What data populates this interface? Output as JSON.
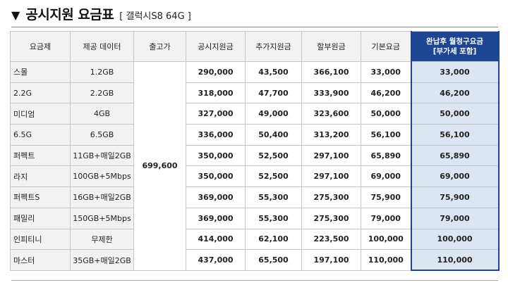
{
  "header": {
    "arrow": "▼",
    "title": "공시지원 요금표",
    "subtitle": "[ 갤럭시S8 64G ]"
  },
  "table": {
    "columns": [
      "요금제",
      "제공 데이터",
      "출고가",
      "공시지원금",
      "추가지원금",
      "할부원금",
      "기본요금"
    ],
    "monthly_header_line1": "완납후 월청구요금",
    "monthly_header_line2": "[부가세 포함]",
    "release_price": "699,600",
    "rows": [
      {
        "plan": "스몰",
        "data": "1.2GB",
        "subsidy": "290,000",
        "extra": "43,500",
        "installment": "366,100",
        "basic": "33,000",
        "monthly": "33,000"
      },
      {
        "plan": "2.2G",
        "data": "2.2GB",
        "subsidy": "318,000",
        "extra": "47,700",
        "installment": "333,900",
        "basic": "46,200",
        "monthly": "46,200"
      },
      {
        "plan": "미디엄",
        "data": "4GB",
        "subsidy": "327,000",
        "extra": "49,000",
        "installment": "323,600",
        "basic": "50,000",
        "monthly": "50,000"
      },
      {
        "plan": "6.5G",
        "data": "6.5GB",
        "subsidy": "336,000",
        "extra": "50,400",
        "installment": "313,200",
        "basic": "56,100",
        "monthly": "56,100"
      },
      {
        "plan": "퍼펙트",
        "data": "11GB+매일2GB",
        "subsidy": "350,000",
        "extra": "52,500",
        "installment": "297,100",
        "basic": "65,890",
        "monthly": "65,890"
      },
      {
        "plan": "라지",
        "data": "100GB+5Mbps",
        "subsidy": "350,000",
        "extra": "52,500",
        "installment": "297,100",
        "basic": "69,000",
        "monthly": "69,000"
      },
      {
        "plan": "퍼펙트S",
        "data": "16GB+매일2GB",
        "subsidy": "369,000",
        "extra": "55,300",
        "installment": "275,300",
        "basic": "75,900",
        "monthly": "75,900"
      },
      {
        "plan": "패밀리",
        "data": "150GB+5Mbps",
        "subsidy": "369,000",
        "extra": "55,300",
        "installment": "275,300",
        "basic": "79,000",
        "monthly": "79,000"
      },
      {
        "plan": "인피티니",
        "data": "무제한",
        "subsidy": "414,000",
        "extra": "62,100",
        "installment": "223,500",
        "basic": "100,000",
        "monthly": "100,000"
      },
      {
        "plan": "마스터",
        "data": "35GB+매일2GB",
        "subsidy": "437,000",
        "extra": "65,500",
        "installment": "197,100",
        "basic": "110,000",
        "monthly": "110,000"
      }
    ]
  },
  "colors": {
    "accent_header": "#1d4592",
    "accent_cell": "#dce5f2",
    "label_bg": "#f2f2f2"
  }
}
